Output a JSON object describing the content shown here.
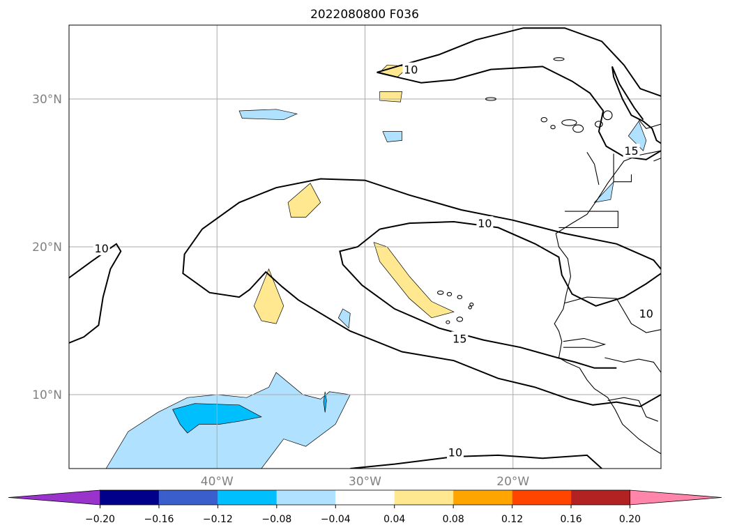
{
  "chart_data": {
    "type": "map",
    "title": "2022080800 F036",
    "lon_range": [
      -50,
      -10
    ],
    "lat_range": [
      5,
      35
    ],
    "lon_ticks": [
      {
        "value": -40,
        "label": "40°W"
      },
      {
        "value": -30,
        "label": "30°W"
      },
      {
        "value": -20,
        "label": "20°W"
      }
    ],
    "lat_ticks": [
      {
        "value": 30,
        "label": "30°N"
      },
      {
        "value": 20,
        "label": "20°N"
      },
      {
        "value": 10,
        "label": "10°N"
      }
    ],
    "grid": true,
    "colorbar": {
      "orientation": "horizontal",
      "extend": "both",
      "levels": [
        -0.2,
        -0.16,
        -0.12,
        -0.08,
        -0.04,
        0.04,
        0.08,
        0.12,
        0.16,
        0.2
      ],
      "tick_labels": [
        "−0.20",
        "−0.16",
        "−0.12",
        "−0.08",
        "−0.04",
        "0.04",
        "0.08",
        "0.12",
        "0.16",
        "0.20"
      ],
      "colors": [
        "#9933cc",
        "#00008b",
        "#3a5fcd",
        "#00bfff",
        "#b0e2ff",
        "#ffffff",
        "#ffe88f",
        "#ffa500",
        "#ff4500",
        "#b22222",
        "#ff85aa"
      ]
    },
    "contour_lines": [
      {
        "level": 10,
        "label": "10"
      },
      {
        "level": 15,
        "label": "15"
      }
    ],
    "contour_label_positions": [
      {
        "label": "10",
        "lon": -26.9,
        "lat": 32.0
      },
      {
        "label": "10",
        "lon": -47.8,
        "lat": 19.9
      },
      {
        "label": "10",
        "lon": -21.9,
        "lat": 21.6
      },
      {
        "label": "10",
        "lon": -11.0,
        "lat": 15.5
      },
      {
        "label": "10",
        "lon": -23.9,
        "lat": 6.1
      },
      {
        "label": "15",
        "lon": -23.6,
        "lat": 13.8
      },
      {
        "label": "15",
        "lon": -12.0,
        "lat": 26.5
      }
    ],
    "shaded_regions": [
      {
        "name": "tropical-atlantic-negative",
        "bin": "-0.08 to -0.04",
        "points": [
          [
            -47.5,
            5
          ],
          [
            -46,
            7.5
          ],
          [
            -44,
            8.8
          ],
          [
            -42,
            9.8
          ],
          [
            -40,
            10
          ],
          [
            -38,
            9.8
          ],
          [
            -36.5,
            10.5
          ],
          [
            -36,
            11.5
          ],
          [
            -34.2,
            10
          ],
          [
            -33,
            9.7
          ],
          [
            -32.4,
            10.2
          ],
          [
            -31,
            10
          ],
          [
            -32,
            8
          ],
          [
            -34,
            6.5
          ],
          [
            -35.5,
            7
          ],
          [
            -37,
            5
          ],
          [
            -47.5,
            5
          ]
        ]
      },
      {
        "name": "tropical-atlantic-core",
        "bin": "-0.12 to -0.08",
        "points": [
          [
            -43,
            9
          ],
          [
            -42.5,
            8
          ],
          [
            -42,
            7.4
          ],
          [
            -41.2,
            8
          ],
          [
            -39.8,
            8
          ],
          [
            -38.5,
            8.2
          ],
          [
            -37,
            8.5
          ],
          [
            -38.5,
            9.3
          ],
          [
            -41.5,
            9.4
          ],
          [
            -43,
            9
          ]
        ]
      },
      {
        "name": "tropical-atlantic-core-b",
        "bin": "-0.12 to -0.08",
        "points": [
          [
            -32.8,
            9.5
          ],
          [
            -32.7,
            8.8
          ],
          [
            -32.6,
            9.6
          ],
          [
            -32.7,
            10.2
          ],
          [
            -32.8,
            9.5
          ]
        ]
      },
      {
        "name": "central-atlantic-positive",
        "bin": "0.04 to 0.08",
        "points": [
          [
            -29.4,
            20.3
          ],
          [
            -28.5,
            20
          ],
          [
            -27,
            18
          ],
          [
            -25.5,
            16.3
          ],
          [
            -24,
            15.6
          ],
          [
            -25.5,
            15.2
          ],
          [
            -27,
            16.5
          ],
          [
            -29,
            19
          ],
          [
            -29.4,
            20.3
          ]
        ]
      },
      {
        "name": "west-atlantic-positive",
        "bin": "0.04 to 0.08",
        "points": [
          [
            -36.5,
            18.5
          ],
          [
            -35.5,
            16
          ],
          [
            -36,
            14.8
          ],
          [
            -37,
            15
          ],
          [
            -37.5,
            16
          ],
          [
            -36.5,
            18.5
          ]
        ]
      },
      {
        "name": "west-atlantic-positive-b",
        "bin": "0.04 to 0.08",
        "points": [
          [
            -33.7,
            24.3
          ],
          [
            -33,
            23
          ],
          [
            -34,
            22
          ],
          [
            -35,
            22
          ],
          [
            -35.2,
            23
          ],
          [
            -33.7,
            24.3
          ]
        ]
      },
      {
        "name": "north-atlantic-positive",
        "bin": "0.04 to 0.08",
        "points": [
          [
            -28.5,
            32.3
          ],
          [
            -27,
            32.2
          ],
          [
            -27.8,
            31.5
          ],
          [
            -29,
            31.8
          ],
          [
            -28.5,
            32.3
          ]
        ]
      },
      {
        "name": "north-atlantic-positive-b",
        "bin": "0.04 to 0.08",
        "points": [
          [
            -29,
            30.5
          ],
          [
            -27.5,
            30.5
          ],
          [
            -27.6,
            29.8
          ],
          [
            -29,
            29.9
          ],
          [
            -29,
            30.5
          ]
        ]
      },
      {
        "name": "north-atlantic-negative",
        "bin": "-0.08 to -0.04",
        "points": [
          [
            -38.5,
            29.2
          ],
          [
            -36,
            29.3
          ],
          [
            -34.6,
            29
          ],
          [
            -35.5,
            28.6
          ],
          [
            -38.3,
            28.7
          ],
          [
            -38.5,
            29.2
          ]
        ]
      },
      {
        "name": "north-atlantic-negative-b",
        "bin": "-0.08 to -0.04",
        "points": [
          [
            -28.8,
            27.8
          ],
          [
            -27.5,
            27.8
          ],
          [
            -27.5,
            27.2
          ],
          [
            -28.5,
            27.1
          ],
          [
            -28.8,
            27.8
          ]
        ]
      },
      {
        "name": "west-africa-negative",
        "bin": "-0.08 to -0.04",
        "points": [
          [
            -11.5,
            28.5
          ],
          [
            -11,
            27.2
          ],
          [
            -11.2,
            26.5
          ],
          [
            -12.2,
            27.5
          ],
          [
            -11.5,
            28.5
          ]
        ]
      },
      {
        "name": "west-africa-negative-b",
        "bin": "-0.08 to -0.04",
        "points": [
          [
            -13.2,
            24.4
          ],
          [
            -13.4,
            23.2
          ],
          [
            -14.5,
            23
          ],
          [
            -13.2,
            24.4
          ]
        ]
      },
      {
        "name": "cabo-verde-negative",
        "bin": "-0.08 to -0.04",
        "points": [
          [
            -31.5,
            15.8
          ],
          [
            -31,
            15.5
          ],
          [
            -31.1,
            14.5
          ],
          [
            -31.8,
            15.2
          ],
          [
            -31.5,
            15.8
          ]
        ]
      }
    ],
    "coastlines": "West Africa, Canary Islands, Cabo Verde",
    "contour_color": "#000000"
  }
}
